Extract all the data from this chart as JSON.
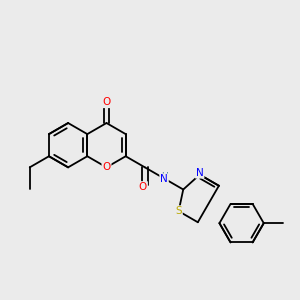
{
  "bg_color": "#ebebeb",
  "bond_color": "#000000",
  "atom_colors": {
    "O": "#ff0000",
    "N": "#0000ff",
    "S": "#bbaa00",
    "H": "#4a8a9a"
  },
  "lw": 1.3,
  "figsize": [
    3.0,
    3.0
  ],
  "dpi": 100
}
